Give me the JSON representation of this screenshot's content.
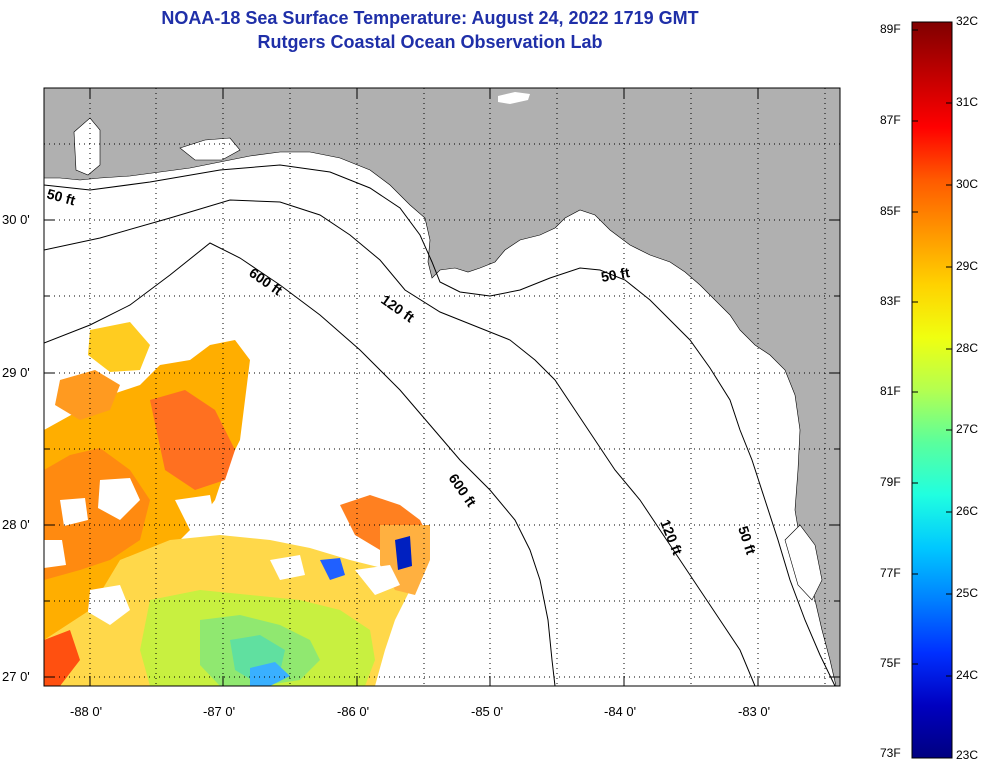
{
  "title": {
    "line1": "NOAA-18 Sea Surface Temperature:  August 24, 2022 1719 GMT",
    "line2": "Rutgers Coastal Ocean Observation Lab"
  },
  "axes": {
    "lat_labels": [
      "30 0'",
      "29 0'",
      "28 0'",
      "27 0'"
    ],
    "lon_labels": [
      "-88 0'",
      "-87 0'",
      "-86 0'",
      "-85 0'",
      "-84 0'",
      "-83 0'"
    ]
  },
  "contour_labels": [
    "50 ft",
    "600 ft",
    "120 ft",
    "50 ft",
    "600 ft",
    "120 ft",
    "50 ft"
  ],
  "colorbar": {
    "fahrenheit": [
      "89F",
      "87F",
      "85F",
      "83F",
      "81F",
      "79F",
      "77F",
      "75F",
      "73F"
    ],
    "celsius": [
      "32C",
      "31C",
      "30C",
      "29C",
      "28C",
      "27C",
      "26C",
      "25C",
      "24C",
      "23C"
    ],
    "colors_top_to_bottom": [
      "#800000",
      "#c00000",
      "#ff0000",
      "#ff5a00",
      "#ff9600",
      "#ffd200",
      "#f0ff10",
      "#b4ff50",
      "#5aff9c",
      "#20ffe0",
      "#00c8ff",
      "#0080ff",
      "#0030ff",
      "#0000c0",
      "#000080"
    ]
  },
  "colors": {
    "land": "#b0b0b0",
    "title": "#1f2fa8"
  }
}
